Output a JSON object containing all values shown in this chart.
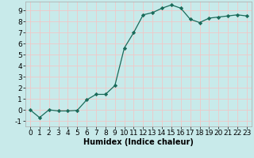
{
  "x": [
    0,
    1,
    2,
    3,
    4,
    5,
    6,
    7,
    8,
    9,
    10,
    11,
    12,
    13,
    14,
    15,
    16,
    17,
    18,
    19,
    20,
    21,
    22,
    23
  ],
  "y": [
    0.0,
    -0.7,
    0.0,
    -0.1,
    -0.1,
    -0.05,
    0.9,
    1.4,
    1.4,
    2.2,
    5.6,
    7.0,
    8.6,
    8.8,
    9.2,
    9.5,
    9.2,
    8.2,
    7.9,
    8.3,
    8.4,
    8.5,
    8.6,
    8.5
  ],
  "xlabel": "Humidex (Indice chaleur)",
  "xlim": [
    -0.5,
    23.5
  ],
  "ylim": [
    -1.5,
    9.8
  ],
  "yticks": [
    -1,
    0,
    1,
    2,
    3,
    4,
    5,
    6,
    7,
    8,
    9
  ],
  "xticks": [
    0,
    1,
    2,
    3,
    4,
    5,
    6,
    7,
    8,
    9,
    10,
    11,
    12,
    13,
    14,
    15,
    16,
    17,
    18,
    19,
    20,
    21,
    22,
    23
  ],
  "line_color": "#1a6b5a",
  "marker_color": "#1a6b5a",
  "bg_color": "#c8eaea",
  "grid_color": "#e8f8f8",
  "spine_color": "#aaaaaa",
  "xlabel_fontsize": 7,
  "tick_fontsize": 6.5
}
